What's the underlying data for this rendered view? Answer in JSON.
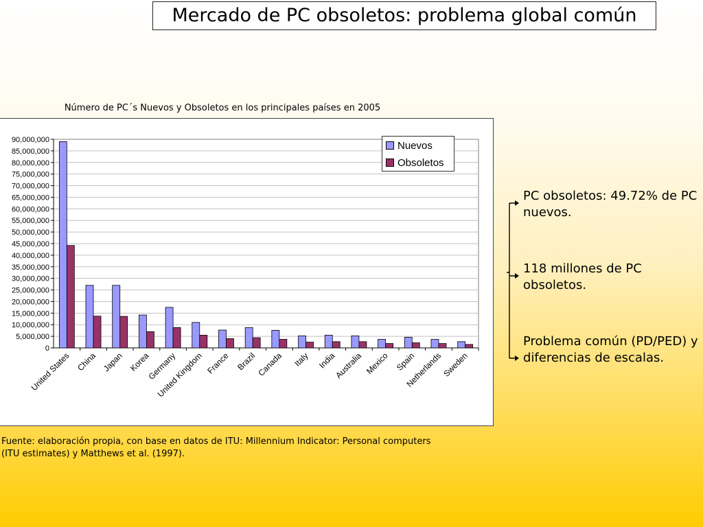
{
  "slide": {
    "title": "Mercado de PC obsoletos: problema global común",
    "points": [
      "PC obsoletos: 49.72% de PC nuevos.",
      "118 millones de PC obsoletos.",
      "Problema común (PD/PED) y diferencias de escalas."
    ],
    "source": "Fuente: elaboración propia, con base en datos de ITU: Millennium Indicator: Personal computers (ITU estimates) y Matthews et al. (1997)."
  },
  "chart_data": {
    "type": "bar",
    "title": "Número de PC´s Nuevos y Obsoletos en los principales países en 2005",
    "xlabel": "",
    "ylabel": "",
    "categories": [
      "United States",
      "China",
      "Japan",
      "Korea",
      "Germany",
      "United Kingdom",
      "France",
      "Brazil",
      "Canada",
      "Italy",
      "India",
      "Australia",
      "Mexico",
      "Spain",
      "Netherlands",
      "Sweden"
    ],
    "series": [
      {
        "name": "Nuevos",
        "color": "#9999ff",
        "values": [
          89000000,
          27000000,
          27000000,
          14200000,
          17500000,
          11000000,
          7700000,
          8800000,
          7600000,
          5200000,
          5500000,
          5200000,
          3700000,
          4600000,
          3700000,
          2700000
        ]
      },
      {
        "name": "Obsoletos",
        "color": "#993366",
        "values": [
          44200000,
          13700000,
          13600000,
          7000000,
          8800000,
          5500000,
          4000000,
          4400000,
          3700000,
          2500000,
          2700000,
          2700000,
          1900000,
          2200000,
          1900000,
          1500000
        ]
      }
    ],
    "ylim": [
      0,
      90000000
    ],
    "yticks": [
      0,
      5000000,
      10000000,
      15000000,
      20000000,
      25000000,
      30000000,
      35000000,
      40000000,
      45000000,
      50000000,
      55000000,
      60000000,
      65000000,
      70000000,
      75000000,
      80000000,
      85000000,
      90000000
    ],
    "ytick_labels": [
      "0",
      "5,000,000",
      "10,000,000",
      "15,000,000",
      "20,000,000",
      "25,000,000",
      "30,000,000",
      "35,000,000",
      "40,000,000",
      "45,000,000",
      "50,000,000",
      "55,000,000",
      "60,000,000",
      "65,000,000",
      "70,000,000",
      "75,000,000",
      "80,000,000",
      "85,000,000",
      "90,000,000"
    ],
    "grid": true,
    "legend_position": "top-right"
  }
}
